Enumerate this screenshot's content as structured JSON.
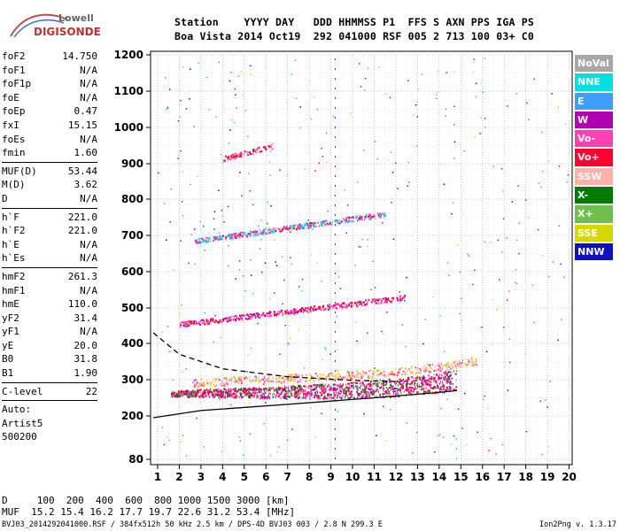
{
  "logo": {
    "line1": "Lowell",
    "line2": "DIGISONDE"
  },
  "header": {
    "line1": "Station    YYYY DAY   DDD HHMMSS P1  FFS S AXN PPS IGA PS",
    "line2": "Boa Vista 2014 Oct19  292 041000 RSF 005 2 713 100 03+ C0"
  },
  "parameters": [
    {
      "name": "foF2",
      "value": "14.750"
    },
    {
      "name": "foF1",
      "value": "N/A"
    },
    {
      "name": "foF1p",
      "value": "N/A"
    },
    {
      "name": "foE",
      "value": "N/A"
    },
    {
      "name": "foEp",
      "value": "0.47"
    },
    {
      "name": "fxI",
      "value": "15.15"
    },
    {
      "name": "foEs",
      "value": "N/A"
    },
    {
      "name": "fmin",
      "value": "1.60"
    },
    {
      "sep": true
    },
    {
      "name": "MUF(D)",
      "value": "53.44"
    },
    {
      "name": "M(D)",
      "value": "3.62"
    },
    {
      "name": "D",
      "value": "N/A"
    },
    {
      "sep": true
    },
    {
      "name": "h`F",
      "value": "221.0"
    },
    {
      "name": "h`F2",
      "value": "221.0"
    },
    {
      "name": "h`E",
      "value": "N/A"
    },
    {
      "name": "h`Es",
      "value": "N/A"
    },
    {
      "sep": true
    },
    {
      "name": "hmF2",
      "value": "261.3"
    },
    {
      "name": "hmF1",
      "value": "N/A"
    },
    {
      "name": "hmE",
      "value": "110.0"
    },
    {
      "name": "yF2",
      "value": "31.4"
    },
    {
      "name": "yF1",
      "value": "N/A"
    },
    {
      "name": "yE",
      "value": "20.0"
    },
    {
      "name": "B0",
      "value": "31.8"
    },
    {
      "name": "B1",
      "value": "1.90"
    },
    {
      "sep": true
    },
    {
      "name": "C-level",
      "value": "22"
    },
    {
      "sep": true
    },
    {
      "line": "Auto:"
    },
    {
      "line": "Artist5"
    },
    {
      "line": "500200"
    }
  ],
  "legend": [
    {
      "label": "NoVal",
      "color": "#a8a8a8"
    },
    {
      "label": "NNE",
      "color": "#00e0e0"
    },
    {
      "label": "E",
      "color": "#3f9fff"
    },
    {
      "label": "W",
      "color": "#b000b0"
    },
    {
      "label": "Vo-",
      "color": "#ff40b0"
    },
    {
      "label": "Vo+",
      "color": "#ff0030"
    },
    {
      "label": "SSW",
      "color": "#ffb0a8"
    },
    {
      "label": "X-",
      "color": "#007a00"
    },
    {
      "label": "X+",
      "color": "#6fbf4f"
    },
    {
      "label": "SSE",
      "color": "#d8d800"
    },
    {
      "label": "NNW",
      "color": "#1010c0"
    }
  ],
  "footer": {
    "line1": "D     100  200  400  600  800 1000 1500 3000 [km]",
    "line2": "MUF  15.2 15.4 16.2 17.7 19.7 22.6 31.2 53.4 [MHz]",
    "line3": "BVJ03_2014292041000.RSF / 384fx512h 50 kHz 2.5 km / DPS-4D BVJ03 003 / 2.8 N 299.3 E",
    "line4": "Ion2Png v. 1.3.17"
  },
  "chart_data": {
    "type": "scatter",
    "xlim": [
      0.8,
      20
    ],
    "ylim": [
      80,
      1210
    ],
    "xticks": [
      "1",
      "2",
      "3",
      "4",
      "5",
      "6",
      "7",
      "8",
      "9",
      "10",
      "11",
      "12",
      "13",
      "14",
      "15",
      "16",
      "17",
      "18",
      "19",
      "20"
    ],
    "yticks": [
      "80",
      "200",
      "300",
      "400",
      "500",
      "600",
      "700",
      "800",
      "900",
      "1000",
      "1100",
      "1200"
    ],
    "y_break": true,
    "grid": "dotted",
    "traces": [
      {
        "name": "O-trace",
        "x": [
          1.6,
          14.8
        ],
        "y_start": [
          255,
          240
        ],
        "y_end": [
          272,
          300
        ],
        "color_mix": [
          "#ff0030",
          "#ff40b0",
          "#b000b0",
          "#007a00"
        ]
      },
      {
        "name": "X-trace",
        "x": [
          2.6,
          15.8
        ],
        "y": [
          292,
          330
        ],
        "color_mix": [
          "#ff40b0",
          "#ffb0a8",
          "#d8d800"
        ]
      },
      {
        "name": "2F-echo",
        "x": [
          2.0,
          12.4
        ],
        "y": [
          455,
          530
        ],
        "color_mix": [
          "#ff0030",
          "#ff40b0",
          "#b000b0"
        ]
      },
      {
        "name": "3F-echo",
        "x": [
          2.7,
          11.5
        ],
        "y": [
          685,
          760
        ],
        "color_mix": [
          "#ff0030",
          "#ff40b0",
          "#3f9fff",
          "#00e0e0"
        ]
      },
      {
        "name": "4F-echo",
        "x": [
          4.0,
          6.3
        ],
        "y": [
          915,
          950
        ],
        "color_mix": [
          "#ff0030",
          "#ff40b0"
        ]
      }
    ],
    "model_curves": [
      {
        "name": "profile-solid",
        "style": "solid",
        "points": [
          [
            0.8,
            195
          ],
          [
            3,
            215
          ],
          [
            7,
            232
          ],
          [
            11,
            250
          ],
          [
            14,
            265
          ],
          [
            14.8,
            270
          ]
        ]
      },
      {
        "name": "profile-dashed",
        "style": "dashed",
        "points": [
          [
            0.8,
            430
          ],
          [
            2,
            370
          ],
          [
            4,
            330
          ],
          [
            7,
            308
          ],
          [
            10,
            298
          ],
          [
            12,
            295
          ]
        ]
      }
    ]
  }
}
